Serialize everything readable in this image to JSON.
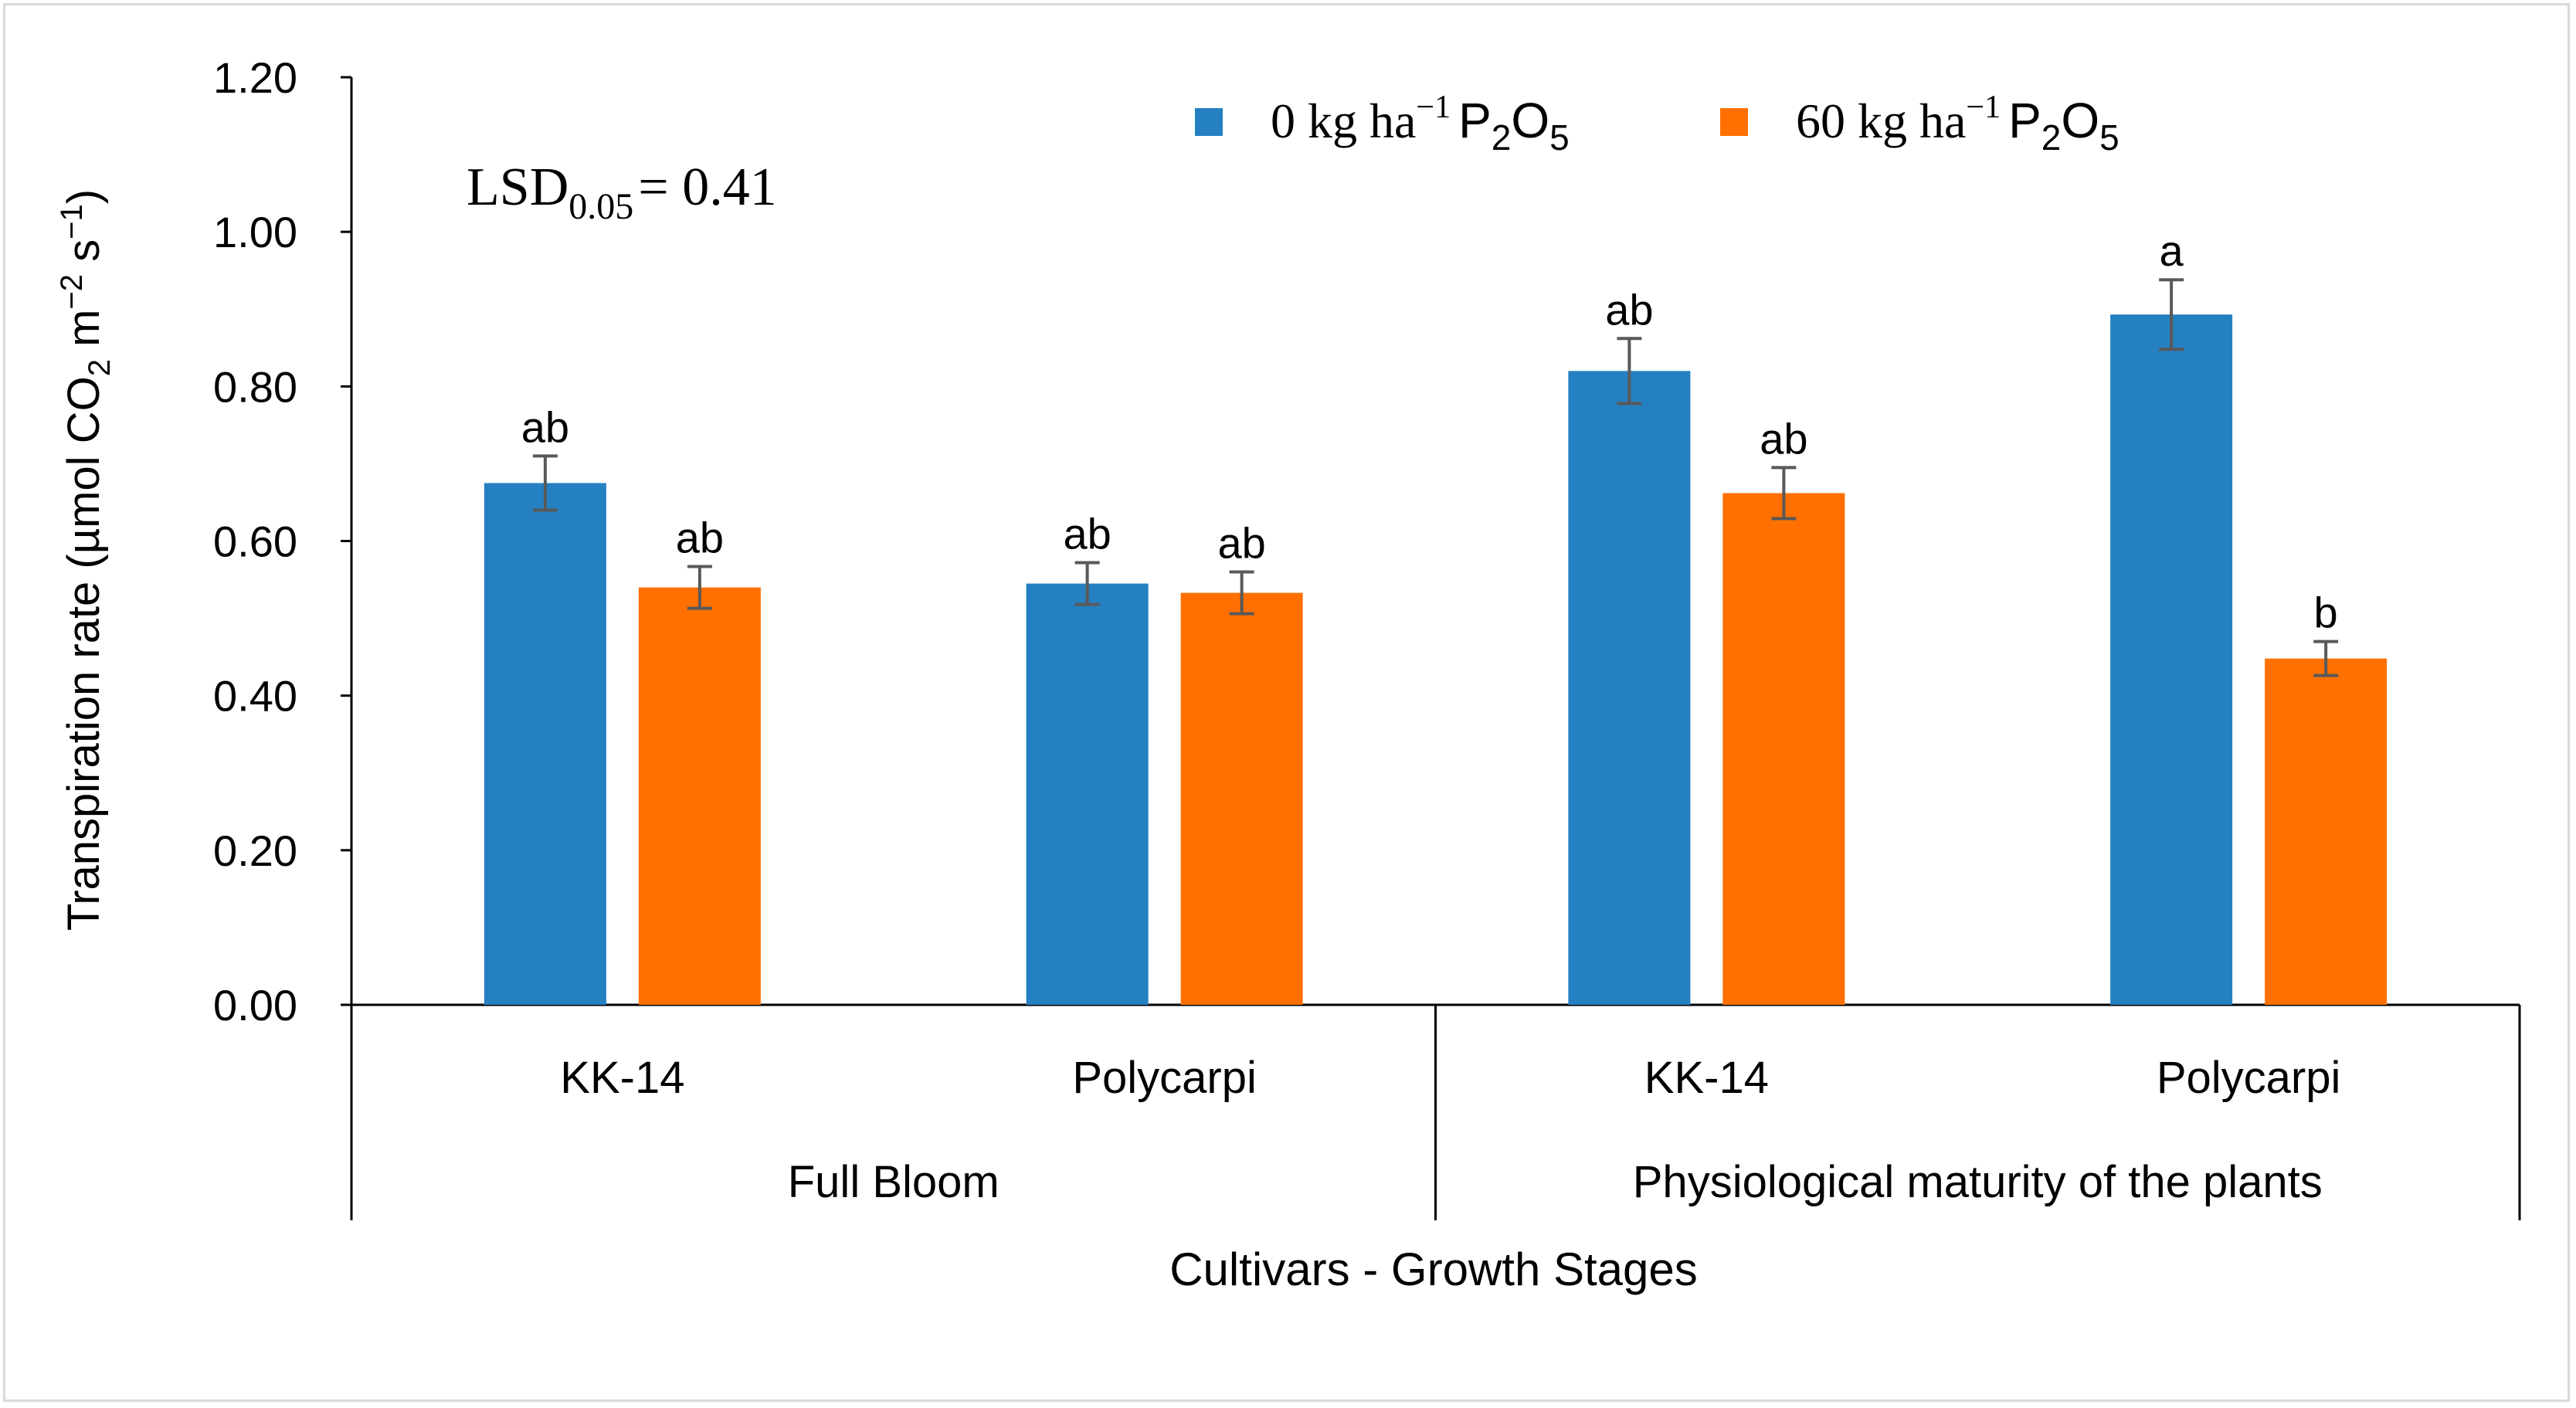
{
  "chart_data": {
    "type": "bar",
    "ylabel_parts": {
      "prefix": "Transpiration rate (µmol CO",
      "co2_sub": "2",
      "m": " m",
      "m_sup": "−2",
      "s": " s",
      "s_sup": "−1",
      "suffix": ")"
    },
    "xlabel": "Cultivars - Growth Stages",
    "ylim": [
      0,
      1.2
    ],
    "yticks": [
      "0.00",
      "0.20",
      "0.40",
      "0.60",
      "0.80",
      "1.00",
      "1.20"
    ],
    "ytick_values": [
      0,
      0.2,
      0.4,
      0.6,
      0.8,
      1.0,
      1.2
    ],
    "groups": [
      {
        "stage": "Full Bloom",
        "cultivars": [
          "KK-14",
          "Polycarpi"
        ]
      },
      {
        "stage": "Physiological maturity of the plants",
        "cultivars": [
          "KK-14",
          "Polycarpi"
        ]
      }
    ],
    "categories": [
      "KK-14",
      "Polycarpi",
      "KK-14",
      "Polycarpi"
    ],
    "series": [
      {
        "name_main": "0 kg ha",
        "name_sup": "−1",
        "name_p": "P",
        "name_p_sub": "2",
        "name_o": "O",
        "name_o_sub": "5",
        "color": "#2580c1",
        "values": [
          0.675,
          0.545,
          0.82,
          0.893
        ],
        "errors": [
          0.035,
          0.027,
          0.042,
          0.045
        ],
        "letters": [
          "ab",
          "ab",
          "ab",
          "a"
        ]
      },
      {
        "name_main": "60 kg ha",
        "name_sup": "−1",
        "name_p": "P",
        "name_p_sub": "2",
        "name_o": "O",
        "name_o_sub": "5",
        "color": "#ff7000",
        "values": [
          0.54,
          0.533,
          0.662,
          0.448
        ],
        "errors": [
          0.027,
          0.027,
          0.033,
          0.022
        ],
        "letters": [
          "ab",
          "ab",
          "ab",
          "b"
        ]
      }
    ],
    "annotation": {
      "lsd_main": "LSD",
      "lsd_sub": "0.05",
      "lsd_value": "= 0.41"
    },
    "legend_position": "top-right",
    "grid": false
  }
}
